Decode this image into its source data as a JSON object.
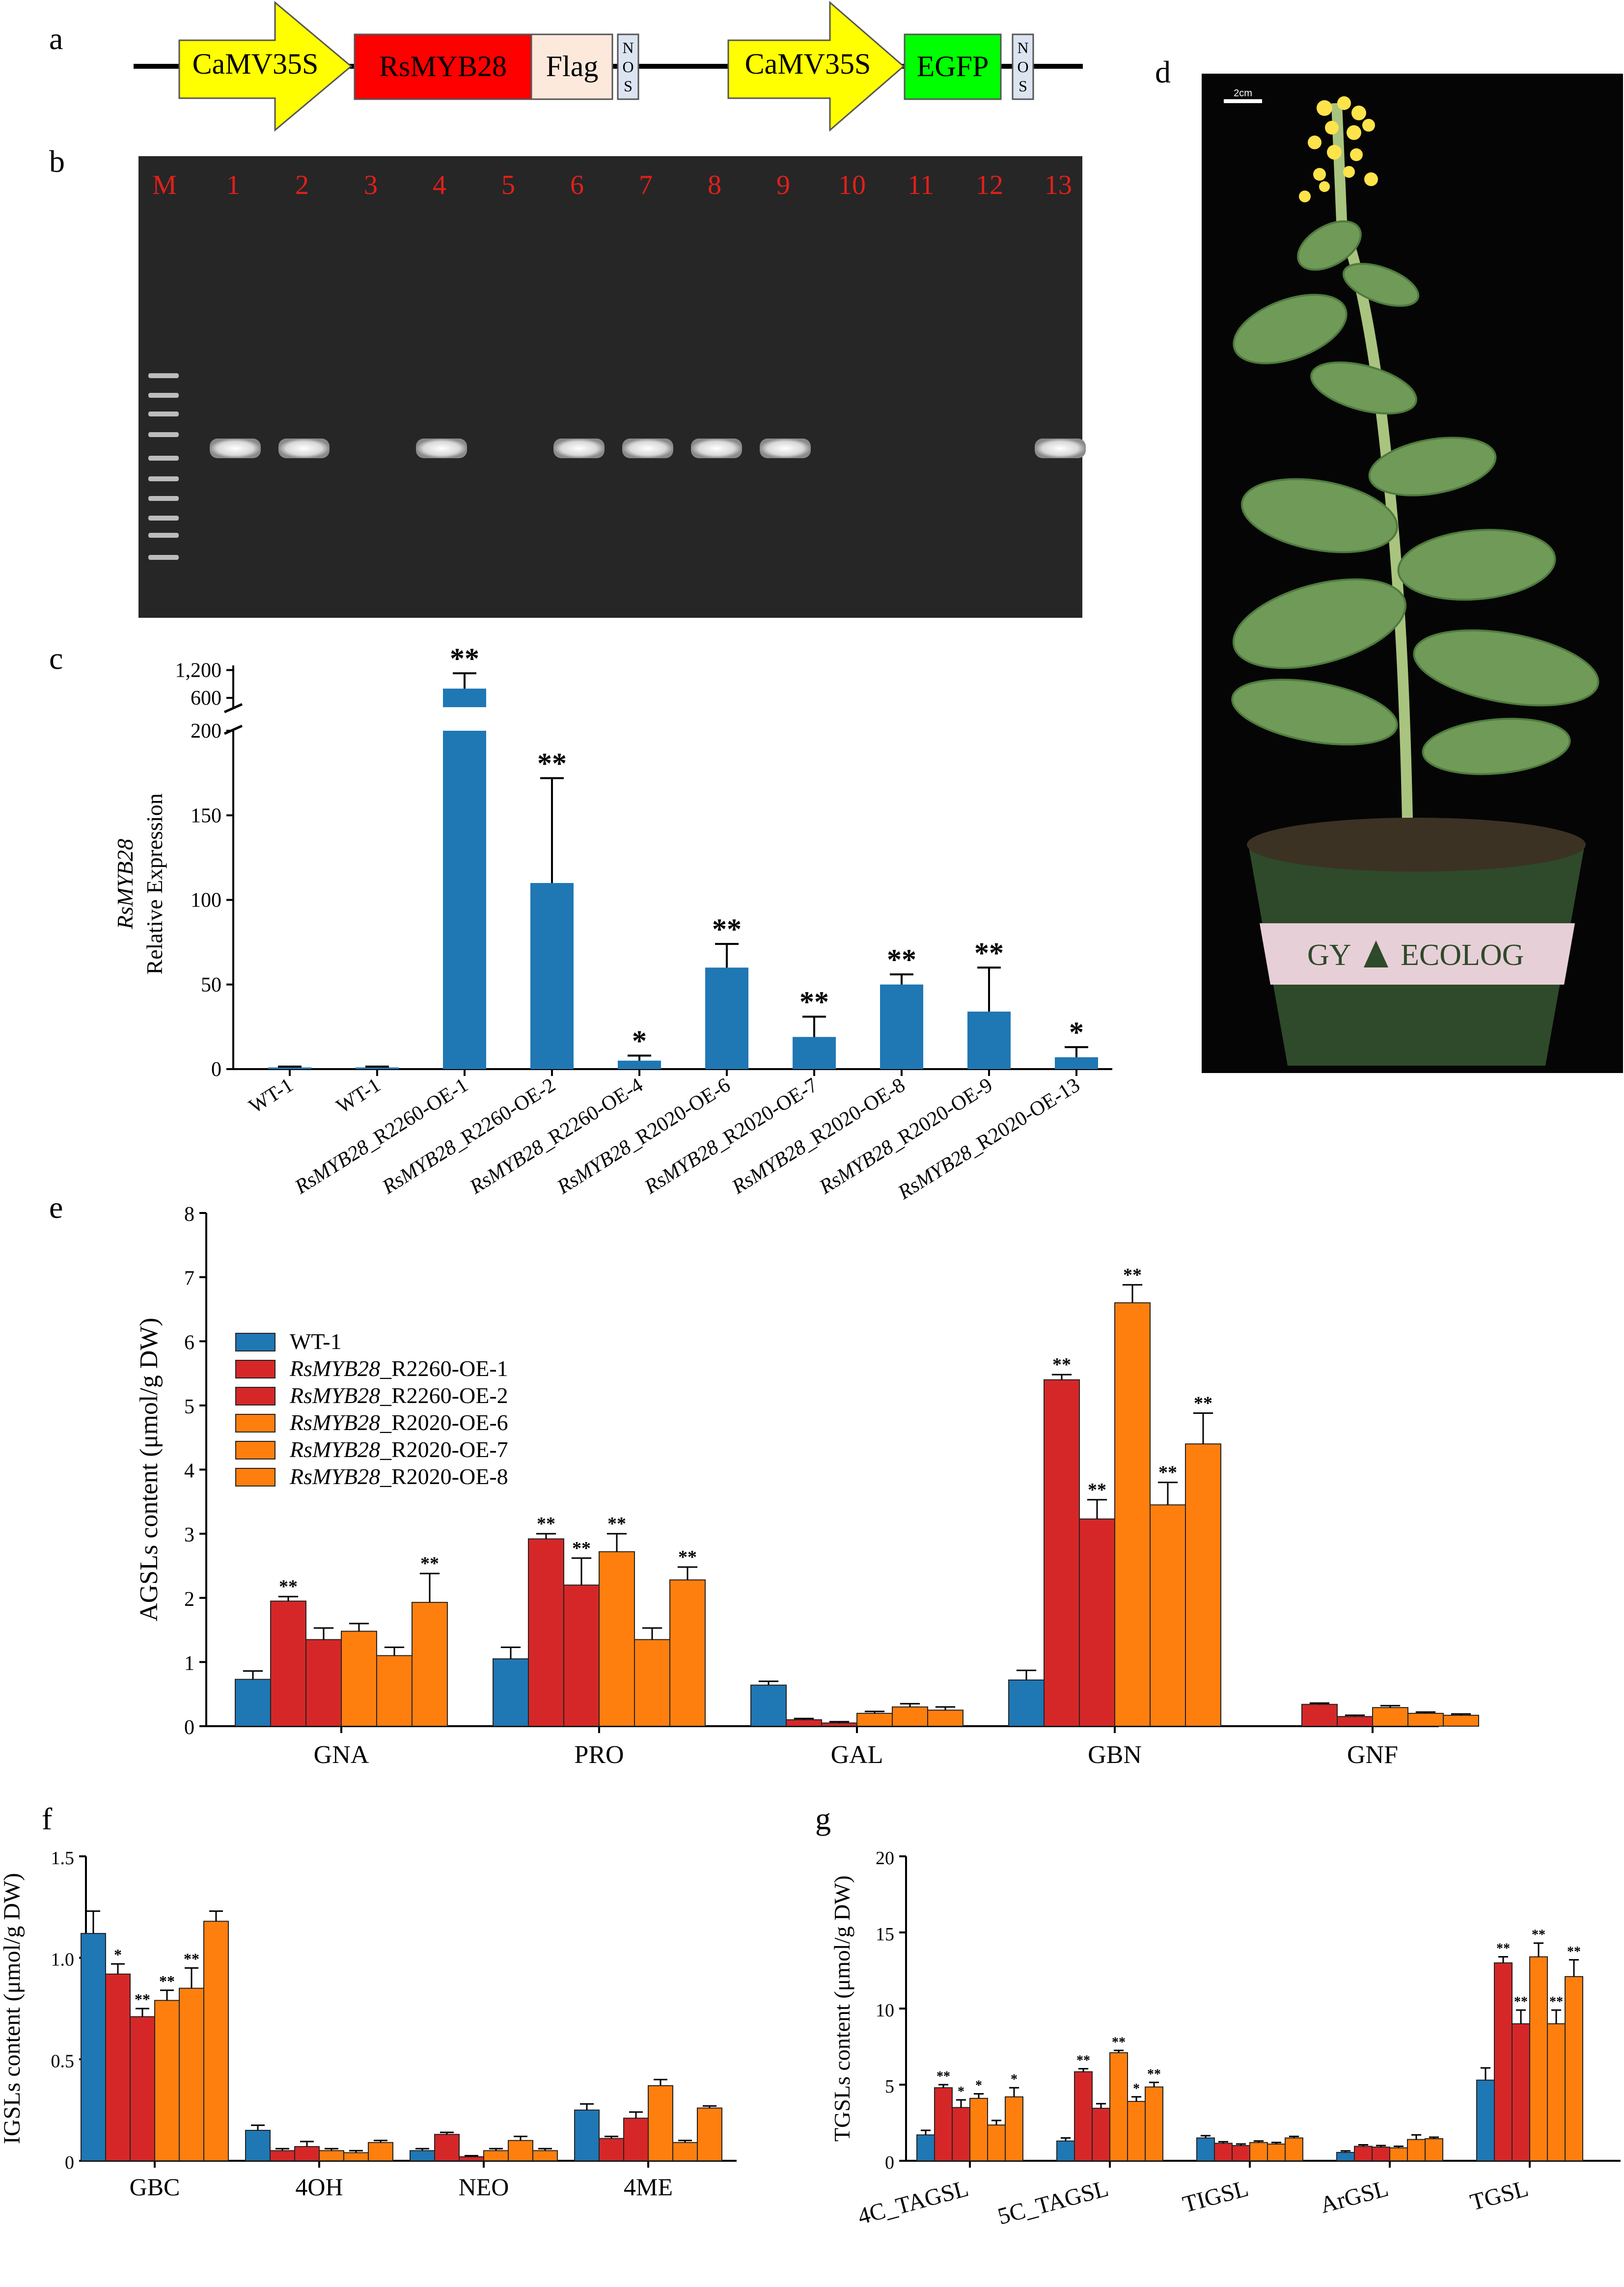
{
  "panels": {
    "a": "a",
    "b": "b",
    "c": "c",
    "d": "d",
    "e": "e",
    "f": "f",
    "g": "g"
  },
  "construct": {
    "promoter1": "CaMV35S",
    "gene": "RsMYB28",
    "tag": "Flag",
    "terminator": [
      "N",
      "O",
      "S"
    ],
    "promoter2": "CaMV35S",
    "reporter": "EGFP",
    "colors": {
      "promoter": "#ffff00",
      "gene": "#ff0000",
      "tag": "#fde9dc",
      "reporter": "#00ff00",
      "terminator": "#dbe4f0"
    }
  },
  "gel": {
    "lanes": [
      "M",
      "1",
      "2",
      "3",
      "4",
      "5",
      "6",
      "7",
      "8",
      "9",
      "10",
      "11",
      "12",
      "13"
    ],
    "bands_present": [
      true,
      true,
      false,
      true,
      false,
      true,
      true,
      true,
      true,
      false,
      false,
      false,
      true
    ],
    "lane_label_color": "#e0201a"
  },
  "photo": {
    "scale_bar": "2cm",
    "pot_label_left": "GY",
    "pot_label_right": "ECOLOG"
  },
  "colors": {
    "wt": "#1f77b4",
    "r2260": "#d62728",
    "r2020": "#ff7f0e"
  },
  "chart_data": [
    {
      "id": "c",
      "type": "bar",
      "ylabel_italic": "RsMYB28",
      "ylabel": "Relative Expression",
      "categories": [
        "WT-1",
        "WT-1",
        "RsMYB28_R2260-OE-1",
        "RsMYB28_R2260-OE-2",
        "RsMYB28_R2260-OE-4",
        "RsMYB28_R2020-OE-6",
        "RsMYB28_R2020-OE-7",
        "RsMYB28_R2020-OE-8",
        "RsMYB28_R2020-OE-9",
        "RsMYB28_R2020-OE-13"
      ],
      "category_italic": "RsMYB28",
      "values": [
        1,
        1,
        800,
        110,
        5,
        60,
        19,
        50,
        34,
        7
      ],
      "errors": [
        0.5,
        0.5,
        330,
        62,
        3,
        14,
        12,
        6,
        26,
        6
      ],
      "significance": [
        "",
        "",
        "**",
        "**",
        "*",
        "**",
        "**",
        "**",
        "**",
        "*"
      ],
      "ylim_lower": [
        0,
        200
      ],
      "yticks_lower": [
        "0",
        "50",
        "100",
        "150",
        "200"
      ],
      "yticks_upper": [
        "600",
        "1,200"
      ],
      "ylim_upper": [
        400,
        1300
      ]
    },
    {
      "id": "e",
      "type": "bar",
      "ylabel": "AGSLs content (μmol/g DW)",
      "ylim": [
        0,
        8
      ],
      "yticks": [
        "0",
        "1",
        "2",
        "3",
        "4",
        "5",
        "6",
        "7",
        "8"
      ],
      "categories": [
        "GNA",
        "PRO",
        "GAL",
        "GBN",
        "GNF"
      ],
      "legend": [
        {
          "italic": "",
          "name": "WT-1"
        },
        {
          "italic": "RsMYB28",
          "name": "_R2260-OE-1"
        },
        {
          "italic": "RsMYB28",
          "name": "_R2260-OE-2"
        },
        {
          "italic": "RsMYB28",
          "name": "_R2020-OE-6"
        },
        {
          "italic": "RsMYB28",
          "name": "_R2020-OE-7"
        },
        {
          "italic": "RsMYB28",
          "name": "_R2020-OE-8"
        }
      ],
      "series": [
        {
          "values": [
            0.73,
            1.05,
            0.64,
            0.72,
            0.0
          ],
          "errors": [
            0.13,
            0.18,
            0.06,
            0.15,
            0.0
          ],
          "sig": [
            "",
            "",
            "",
            "",
            ""
          ]
        },
        {
          "values": [
            1.95,
            2.92,
            0.1,
            5.4,
            0.34
          ],
          "errors": [
            0.07,
            0.08,
            0.02,
            0.08,
            0.02
          ],
          "sig": [
            "**",
            "**",
            "",
            "**",
            ""
          ]
        },
        {
          "values": [
            1.35,
            2.2,
            0.05,
            3.23,
            0.15
          ],
          "errors": [
            0.18,
            0.42,
            0.02,
            0.3,
            0.02
          ],
          "sig": [
            "",
            "**",
            "",
            "**",
            ""
          ]
        },
        {
          "values": [
            1.48,
            2.72,
            0.2,
            6.6,
            0.29
          ],
          "errors": [
            0.12,
            0.28,
            0.03,
            0.28,
            0.03
          ],
          "sig": [
            "",
            "**",
            "",
            "**",
            ""
          ]
        },
        {
          "values": [
            1.1,
            1.35,
            0.3,
            3.45,
            0.2
          ],
          "errors": [
            0.13,
            0.18,
            0.05,
            0.35,
            0.02
          ],
          "sig": [
            "",
            "",
            "",
            "**",
            ""
          ]
        },
        {
          "values": [
            1.93,
            2.28,
            0.25,
            4.4,
            0.17
          ],
          "errors": [
            0.45,
            0.2,
            0.05,
            0.48,
            0.02
          ],
          "sig": [
            "**",
            "**",
            "",
            "**",
            ""
          ]
        }
      ]
    },
    {
      "id": "f",
      "type": "bar",
      "ylabel": "IGSLs content (μmol/g DW)",
      "ylim": [
        0,
        1.5
      ],
      "yticks": [
        "0",
        "0.5",
        "1.0",
        "1.5"
      ],
      "categories": [
        "GBC",
        "4OH",
        "NEO",
        "4ME"
      ],
      "series": [
        {
          "values": [
            1.12,
            0.15,
            0.05,
            0.25
          ],
          "errors": [
            0.11,
            0.025,
            0.01,
            0.03
          ],
          "sig": [
            "",
            "",
            "",
            ""
          ]
        },
        {
          "values": [
            0.92,
            0.05,
            0.13,
            0.11
          ],
          "errors": [
            0.05,
            0.01,
            0.01,
            0.01
          ],
          "sig": [
            "*",
            "",
            "",
            ""
          ]
        },
        {
          "values": [
            0.71,
            0.07,
            0.02,
            0.21
          ],
          "errors": [
            0.04,
            0.025,
            0.005,
            0.03
          ],
          "sig": [
            "**",
            "",
            "",
            ""
          ]
        },
        {
          "values": [
            0.79,
            0.05,
            0.05,
            0.37
          ],
          "errors": [
            0.05,
            0.01,
            0.01,
            0.03
          ],
          "sig": [
            "**",
            "",
            "",
            ""
          ]
        },
        {
          "values": [
            0.85,
            0.04,
            0.1,
            0.09
          ],
          "errors": [
            0.1,
            0.01,
            0.02,
            0.01
          ],
          "sig": [
            "**",
            "",
            "",
            ""
          ]
        },
        {
          "values": [
            1.18,
            0.09,
            0.05,
            0.26
          ],
          "errors": [
            0.05,
            0.01,
            0.01,
            0.01
          ],
          "sig": [
            "",
            "",
            "",
            ""
          ]
        }
      ]
    },
    {
      "id": "g",
      "type": "bar",
      "ylabel": "TGSLs content (μmol/g DW)",
      "ylim": [
        0,
        20
      ],
      "yticks": [
        "0",
        "5",
        "10",
        "15",
        "20"
      ],
      "categories": [
        "4C_TAGSL",
        "5C_TAGSL",
        "TIGSL",
        "ArGSL",
        "TGSL"
      ],
      "series": [
        {
          "values": [
            1.7,
            1.3,
            1.5,
            0.55,
            5.3
          ],
          "errors": [
            0.3,
            0.2,
            0.15,
            0.1,
            0.8
          ],
          "sig": [
            "",
            "",
            "",
            "",
            ""
          ]
        },
        {
          "values": [
            4.8,
            5.85,
            1.15,
            0.95,
            13.0
          ],
          "errors": [
            0.2,
            0.2,
            0.1,
            0.1,
            0.4
          ],
          "sig": [
            "**",
            "**",
            "",
            "",
            "**"
          ]
        },
        {
          "values": [
            3.5,
            3.45,
            1.0,
            0.9,
            9.0
          ],
          "errors": [
            0.5,
            0.3,
            0.1,
            0.1,
            0.9
          ],
          "sig": [
            "*",
            "",
            "",
            "",
            "**"
          ]
        },
        {
          "values": [
            4.1,
            7.1,
            1.2,
            0.85,
            13.4
          ],
          "errors": [
            0.3,
            0.15,
            0.1,
            0.1,
            0.9
          ],
          "sig": [
            "*",
            "**",
            "",
            "",
            "**"
          ]
        },
        {
          "values": [
            2.35,
            3.9,
            1.1,
            1.4,
            9.0
          ],
          "errors": [
            0.3,
            0.3,
            0.1,
            0.3,
            0.9
          ],
          "sig": [
            "",
            "*",
            "",
            "",
            "**"
          ]
        },
        {
          "values": [
            4.2,
            4.85,
            1.5,
            1.45,
            12.1
          ],
          "errors": [
            0.6,
            0.3,
            0.1,
            0.1,
            1.1
          ],
          "sig": [
            "*",
            "**",
            "",
            "",
            "**"
          ]
        }
      ]
    }
  ]
}
